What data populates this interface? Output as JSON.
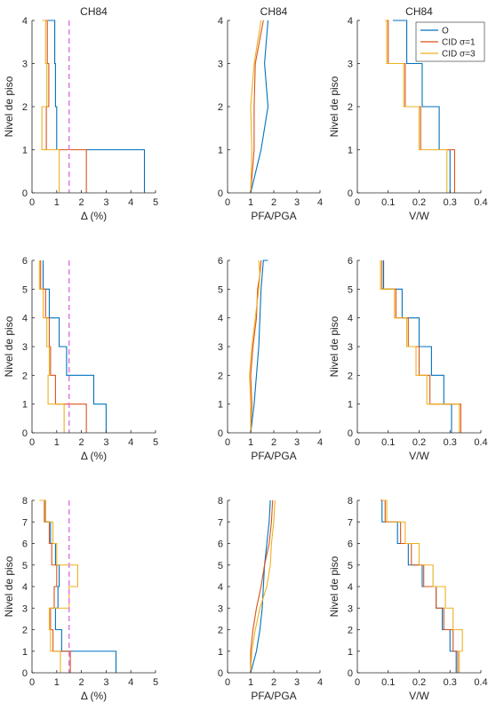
{
  "figure": {
    "legend": {
      "placement": "top-right of top-right panel",
      "entries": [
        {
          "name": "O",
          "color": "#0072BD"
        },
        {
          "name": "CID σ=1",
          "color": "#D95319"
        },
        {
          "name": "CID σ=3",
          "color": "#EDB120"
        }
      ]
    },
    "reference_line_color": "#E377E3"
  },
  "chart_data": [
    {
      "type": "line",
      "title": "CH84",
      "xlabel": "Δ (%)",
      "ylabel": "Nivel de piso",
      "xlim": [
        0,
        5
      ],
      "ylim": [
        0,
        4
      ],
      "xticks": [
        0,
        1,
        2,
        3,
        4,
        5
      ],
      "yticks": [
        0,
        1,
        2,
        3,
        4
      ],
      "grid": false,
      "reference_x": 1.5,
      "series": [
        {
          "name": "O",
          "color": "#0072BD",
          "x": [
            4.55,
            4.55,
            1.0,
            1.0,
            0.95,
            0.95,
            0.92,
            0.92,
            0.65,
            0.65
          ],
          "y": [
            0,
            1,
            1,
            2,
            2,
            3,
            3,
            4,
            4,
            4
          ]
        },
        {
          "name": "CID σ=1",
          "color": "#D95319",
          "x": [
            2.2,
            2.2,
            0.58,
            0.58,
            0.68,
            0.68,
            0.62,
            0.62,
            0.48,
            0.48
          ],
          "y": [
            0,
            1,
            1,
            2,
            2,
            3,
            3,
            4,
            4,
            4
          ]
        },
        {
          "name": "CID σ=3",
          "color": "#EDB120",
          "x": [
            1.1,
            1.1,
            0.4,
            0.4,
            0.6,
            0.6,
            0.55,
            0.55,
            0.42,
            0.42
          ],
          "y": [
            0,
            1,
            1,
            2,
            2,
            3,
            3,
            4,
            4,
            4
          ]
        }
      ]
    },
    {
      "type": "line",
      "title": "CH84",
      "xlabel": "PFA/PGA",
      "ylabel": "",
      "xlim": [
        0,
        4
      ],
      "ylim": [
        0,
        4
      ],
      "xticks": [
        0,
        1,
        2,
        3,
        4
      ],
      "yticks": [
        0,
        1,
        2,
        3,
        4
      ],
      "grid": false,
      "series": [
        {
          "name": "O",
          "color": "#0072BD",
          "x": [
            1.0,
            1.45,
            1.75,
            1.6,
            1.75
          ],
          "y": [
            0,
            1,
            2,
            3,
            4
          ]
        },
        {
          "name": "CID σ=1",
          "color": "#D95319",
          "x": [
            1.0,
            1.15,
            1.15,
            1.2,
            1.55
          ],
          "y": [
            0,
            1,
            2,
            3,
            4
          ]
        },
        {
          "name": "CID σ=3",
          "color": "#EDB120",
          "x": [
            1.0,
            1.05,
            1.0,
            1.15,
            1.45
          ],
          "y": [
            0,
            1,
            2,
            3,
            4
          ]
        }
      ]
    },
    {
      "type": "line",
      "title": "CH84",
      "xlabel": "V/W",
      "ylabel": "Nivel de piso",
      "xlim": [
        0,
        0.4
      ],
      "ylim": [
        0,
        4
      ],
      "xticks": [
        0,
        0.1,
        0.2,
        0.3,
        0.4
      ],
      "yticks": [
        0,
        1,
        2,
        3,
        4
      ],
      "grid": false,
      "series": [
        {
          "name": "O",
          "color": "#0072BD",
          "x": [
            0.3,
            0.3,
            0.265,
            0.265,
            0.21,
            0.21,
            0.16,
            0.16,
            0.115,
            0.115
          ],
          "y": [
            0,
            1,
            1,
            2,
            2,
            3,
            3,
            4,
            4,
            4
          ]
        },
        {
          "name": "CID σ=1",
          "color": "#D95319",
          "x": [
            0.315,
            0.315,
            0.205,
            0.205,
            0.155,
            0.155,
            0.1,
            0.1,
            0.095,
            0.095
          ],
          "y": [
            0,
            1,
            1,
            2,
            2,
            3,
            3,
            4,
            4,
            4
          ]
        },
        {
          "name": "CID σ=3",
          "color": "#EDB120",
          "x": [
            0.29,
            0.29,
            0.2,
            0.2,
            0.15,
            0.15,
            0.095,
            0.095,
            0.09,
            0.09
          ],
          "y": [
            0,
            1,
            1,
            2,
            2,
            3,
            3,
            4,
            4,
            4
          ]
        }
      ]
    },
    {
      "type": "line",
      "title": "",
      "xlabel": "Δ (%)",
      "ylabel": "Nivel de piso",
      "xlim": [
        0,
        5
      ],
      "ylim": [
        0,
        6
      ],
      "xticks": [
        0,
        1,
        2,
        3,
        4,
        5
      ],
      "yticks": [
        0,
        1,
        2,
        3,
        4,
        5,
        6
      ],
      "grid": false,
      "reference_x": 1.5,
      "series": [
        {
          "name": "O",
          "color": "#0072BD",
          "x": [
            3.0,
            3.0,
            2.5,
            2.5,
            1.4,
            1.4,
            1.1,
            1.1,
            0.7,
            0.7,
            0.45,
            0.45
          ],
          "y": [
            0,
            1,
            1,
            2,
            2,
            3,
            3,
            4,
            4,
            5,
            5,
            6
          ]
        },
        {
          "name": "CID σ=1",
          "color": "#D95319",
          "x": [
            2.2,
            2.2,
            0.95,
            0.95,
            0.75,
            0.75,
            0.7,
            0.7,
            0.55,
            0.55,
            0.35,
            0.35
          ],
          "y": [
            0,
            1,
            1,
            2,
            2,
            3,
            3,
            4,
            4,
            5,
            5,
            6
          ]
        },
        {
          "name": "CID σ=3",
          "color": "#EDB120",
          "x": [
            1.3,
            1.3,
            0.65,
            0.65,
            0.7,
            0.7,
            0.6,
            0.6,
            0.45,
            0.45,
            0.3,
            0.3
          ],
          "y": [
            0,
            1,
            1,
            2,
            2,
            3,
            3,
            4,
            4,
            5,
            5,
            6
          ]
        }
      ]
    },
    {
      "type": "line",
      "title": "",
      "xlabel": "PFA/PGA",
      "ylabel": "",
      "xlim": [
        0,
        4
      ],
      "ylim": [
        0,
        6
      ],
      "xticks": [
        0,
        1,
        2,
        3,
        4
      ],
      "yticks": [
        0,
        1,
        2,
        3,
        4,
        5,
        6
      ],
      "grid": false,
      "series": [
        {
          "name": "O",
          "color": "#0072BD",
          "x": [
            1.0,
            1.15,
            1.25,
            1.35,
            1.4,
            1.45,
            1.55,
            1.75
          ],
          "y": [
            0,
            1,
            2,
            3,
            4,
            5,
            6,
            6
          ]
        },
        {
          "name": "CID σ=1",
          "color": "#D95319",
          "x": [
            1.0,
            1.05,
            1.0,
            1.1,
            1.25,
            1.3,
            1.4,
            1.45
          ],
          "y": [
            0,
            1,
            2,
            3,
            4,
            5,
            5.5,
            6
          ]
        },
        {
          "name": "CID σ=3",
          "color": "#EDB120",
          "x": [
            1.0,
            1.0,
            0.95,
            1.05,
            1.2,
            1.35,
            1.4,
            1.35
          ],
          "y": [
            0,
            1,
            2,
            3,
            4,
            5,
            5.5,
            6
          ]
        }
      ]
    },
    {
      "type": "line",
      "title": "",
      "xlabel": "V/W",
      "ylabel": "Nivel de piso",
      "xlim": [
        0,
        0.4
      ],
      "ylim": [
        0,
        6
      ],
      "xticks": [
        0,
        0.1,
        0.2,
        0.3,
        0.4
      ],
      "yticks": [
        0,
        1,
        2,
        3,
        4,
        5,
        6
      ],
      "grid": false,
      "series": [
        {
          "name": "O",
          "color": "#0072BD",
          "x": [
            0.305,
            0.305,
            0.28,
            0.28,
            0.24,
            0.24,
            0.2,
            0.2,
            0.145,
            0.145,
            0.085,
            0.085
          ],
          "y": [
            0,
            1,
            1,
            2,
            2,
            3,
            3,
            4,
            4,
            5,
            5,
            6
          ]
        },
        {
          "name": "CID σ=1",
          "color": "#D95319",
          "x": [
            0.335,
            0.335,
            0.235,
            0.235,
            0.2,
            0.2,
            0.165,
            0.165,
            0.125,
            0.125,
            0.08,
            0.08
          ],
          "y": [
            0,
            1,
            1,
            2,
            2,
            3,
            3,
            4,
            4,
            5,
            5,
            6
          ]
        },
        {
          "name": "CID σ=3",
          "color": "#EDB120",
          "x": [
            0.33,
            0.33,
            0.225,
            0.225,
            0.19,
            0.19,
            0.16,
            0.16,
            0.12,
            0.12,
            0.075,
            0.075
          ],
          "y": [
            0,
            1,
            1,
            2,
            2,
            3,
            3,
            4,
            4,
            5,
            5,
            6
          ]
        }
      ]
    },
    {
      "type": "line",
      "title": "",
      "xlabel": "Δ (%)",
      "ylabel": "Nivel de piso",
      "xlim": [
        0,
        5
      ],
      "ylim": [
        0,
        8
      ],
      "xticks": [
        0,
        1,
        2,
        3,
        4,
        5
      ],
      "yticks": [
        0,
        1,
        2,
        3,
        4,
        5,
        6,
        7,
        8
      ],
      "grid": false,
      "reference_x": 1.5,
      "series": [
        {
          "name": "O",
          "color": "#0072BD",
          "x": [
            3.4,
            3.4,
            1.2,
            1.2,
            0.95,
            0.95,
            1.05,
            1.05,
            1.1,
            1.1,
            0.95,
            0.95,
            0.75,
            0.75,
            0.55,
            0.55,
            0.35,
            0.35
          ],
          "y": [
            0,
            1,
            1,
            2,
            2,
            3,
            3,
            4,
            4,
            5,
            5,
            6,
            6,
            7,
            7,
            8,
            8,
            8
          ]
        },
        {
          "name": "CID σ=1",
          "color": "#D95319",
          "x": [
            1.55,
            1.55,
            0.85,
            0.85,
            0.75,
            0.75,
            0.9,
            0.9,
            1.0,
            1.0,
            0.8,
            0.8,
            0.7,
            0.7,
            0.5,
            0.5,
            0.35,
            0.35
          ],
          "y": [
            0,
            1,
            1,
            2,
            2,
            3,
            3,
            4,
            4,
            5,
            5,
            6,
            6,
            7,
            7,
            8,
            8,
            8
          ]
        },
        {
          "name": "CID σ=3",
          "color": "#EDB120",
          "x": [
            1.15,
            1.15,
            0.75,
            0.75,
            0.7,
            0.7,
            1.5,
            1.5,
            1.85,
            1.85,
            1.0,
            1.0,
            0.85,
            0.85,
            0.55,
            0.55,
            0.3,
            0.3
          ],
          "y": [
            0,
            1,
            1,
            2,
            2,
            3,
            3,
            4,
            4,
            5,
            5,
            6,
            6,
            7,
            7,
            8,
            8,
            8
          ]
        }
      ]
    },
    {
      "type": "line",
      "title": "",
      "xlabel": "PFA/PGA",
      "ylabel": "",
      "xlim": [
        0,
        4
      ],
      "ylim": [
        0,
        8
      ],
      "xticks": [
        0,
        1,
        2,
        3,
        4
      ],
      "yticks": [
        0,
        1,
        2,
        3,
        4,
        5,
        6,
        7,
        8
      ],
      "grid": false,
      "series": [
        {
          "name": "O",
          "color": "#0072BD",
          "x": [
            1.0,
            1.25,
            1.4,
            1.5,
            1.55,
            1.6,
            1.7,
            1.8,
            1.85
          ],
          "y": [
            0,
            1,
            2,
            3,
            4,
            5,
            6,
            7,
            8
          ]
        },
        {
          "name": "CID σ=1",
          "color": "#D95319",
          "x": [
            1.0,
            1.0,
            1.1,
            1.25,
            1.45,
            1.6,
            1.8,
            1.9,
            1.95
          ],
          "y": [
            0,
            1,
            2,
            3,
            4,
            5,
            6,
            7,
            8
          ]
        },
        {
          "name": "CID σ=3",
          "color": "#EDB120",
          "x": [
            1.0,
            1.05,
            1.2,
            1.4,
            1.7,
            1.85,
            1.9,
            2.0,
            2.05
          ],
          "y": [
            0,
            1,
            2,
            3,
            4,
            5,
            6,
            7,
            8
          ]
        }
      ]
    },
    {
      "type": "line",
      "title": "",
      "xlabel": "V/W",
      "ylabel": "Nivel de piso",
      "xlim": [
        0,
        0.4
      ],
      "ylim": [
        0,
        8
      ],
      "xticks": [
        0,
        0.1,
        0.2,
        0.3,
        0.4
      ],
      "yticks": [
        0,
        1,
        2,
        3,
        4,
        5,
        6,
        7,
        8
      ],
      "grid": false,
      "series": [
        {
          "name": "O",
          "color": "#0072BD",
          "x": [
            0.32,
            0.32,
            0.3,
            0.3,
            0.275,
            0.275,
            0.255,
            0.255,
            0.21,
            0.21,
            0.165,
            0.165,
            0.13,
            0.13,
            0.08,
            0.08,
            0.075,
            0.075
          ],
          "y": [
            0,
            1,
            1,
            2,
            2,
            3,
            3,
            4,
            4,
            5,
            5,
            6,
            6,
            7,
            7,
            8,
            8,
            8
          ]
        },
        {
          "name": "CID σ=1",
          "color": "#D95319",
          "x": [
            0.325,
            0.325,
            0.31,
            0.31,
            0.28,
            0.28,
            0.255,
            0.255,
            0.215,
            0.215,
            0.175,
            0.175,
            0.14,
            0.14,
            0.09,
            0.09,
            0.075,
            0.075
          ],
          "y": [
            0,
            1,
            1,
            2,
            2,
            3,
            3,
            4,
            4,
            5,
            5,
            6,
            6,
            7,
            7,
            8,
            8,
            8
          ]
        },
        {
          "name": "CID σ=3",
          "color": "#EDB120",
          "x": [
            0.33,
            0.33,
            0.34,
            0.34,
            0.31,
            0.31,
            0.285,
            0.285,
            0.245,
            0.245,
            0.2,
            0.2,
            0.155,
            0.155,
            0.095,
            0.095,
            0.08,
            0.08
          ],
          "y": [
            0,
            1,
            1,
            2,
            2,
            3,
            3,
            4,
            4,
            5,
            5,
            6,
            6,
            7,
            7,
            8,
            8,
            8
          ]
        }
      ]
    }
  ]
}
